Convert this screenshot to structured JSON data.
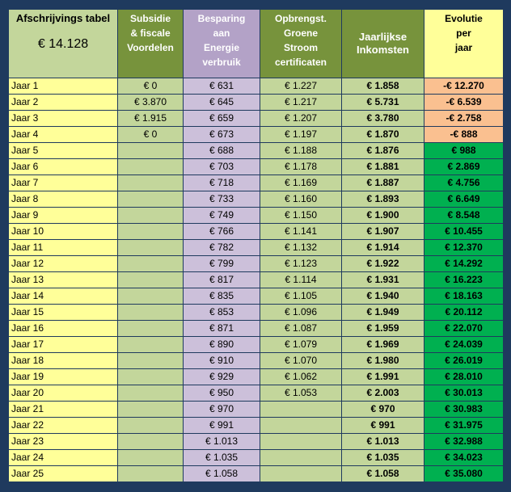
{
  "header": {
    "title": "Afschrijvings tabel",
    "investment": "€ 14.128",
    "col_subsidie": [
      "Subsidie",
      "& fiscale",
      "Voordelen"
    ],
    "col_besparing": [
      "Besparing",
      "aan",
      "Energie",
      "verbruik"
    ],
    "col_opbrengst": [
      "Opbrengst.",
      "Groene",
      "Stroom",
      "certificaten"
    ],
    "col_jaarlijkse": [
      "Jaarlijkse",
      "Inkomsten"
    ],
    "col_evolutie": [
      "Evolutie",
      "per",
      "jaar"
    ]
  },
  "colors": {
    "background": "#1f3a5e",
    "year_cell": "#ffff99",
    "green_light": "#c3d69b",
    "green_dark": "#77933c",
    "lavender": "#ccc0da",
    "lavender_header": "#b3a2c7",
    "negative": "#fac090",
    "positive": "#00b050"
  },
  "rows": [
    {
      "year": "Jaar 1",
      "subsidie": "€ 0",
      "besparing": "€ 631",
      "opbrengst": "€ 1.227",
      "inkomsten": "€ 1.858",
      "evolutie": "-€ 12.270",
      "sign": "neg"
    },
    {
      "year": "Jaar 2",
      "subsidie": "€ 3.870",
      "besparing": "€ 645",
      "opbrengst": "€ 1.217",
      "inkomsten": "€ 5.731",
      "evolutie": "-€ 6.539",
      "sign": "neg"
    },
    {
      "year": "Jaar 3",
      "subsidie": "€ 1.915",
      "besparing": "€ 659",
      "opbrengst": "€ 1.207",
      "inkomsten": "€ 3.780",
      "evolutie": "-€ 2.758",
      "sign": "neg"
    },
    {
      "year": "Jaar 4",
      "subsidie": "€ 0",
      "besparing": "€ 673",
      "opbrengst": "€ 1.197",
      "inkomsten": "€ 1.870",
      "evolutie": "-€ 888",
      "sign": "neg"
    },
    {
      "year": "Jaar 5",
      "subsidie": "",
      "besparing": "€ 688",
      "opbrengst": "€ 1.188",
      "inkomsten": "€ 1.876",
      "evolutie": "€ 988",
      "sign": "pos"
    },
    {
      "year": "Jaar 6",
      "subsidie": "",
      "besparing": "€ 703",
      "opbrengst": "€ 1.178",
      "inkomsten": "€ 1.881",
      "evolutie": "€ 2.869",
      "sign": "pos"
    },
    {
      "year": "Jaar 7",
      "subsidie": "",
      "besparing": "€ 718",
      "opbrengst": "€ 1.169",
      "inkomsten": "€ 1.887",
      "evolutie": "€ 4.756",
      "sign": "pos"
    },
    {
      "year": "Jaar 8",
      "subsidie": "",
      "besparing": "€ 733",
      "opbrengst": "€ 1.160",
      "inkomsten": "€ 1.893",
      "evolutie": "€ 6.649",
      "sign": "pos"
    },
    {
      "year": "Jaar 9",
      "subsidie": "",
      "besparing": "€ 749",
      "opbrengst": "€ 1.150",
      "inkomsten": "€ 1.900",
      "evolutie": "€ 8.548",
      "sign": "pos"
    },
    {
      "year": "Jaar 10",
      "subsidie": "",
      "besparing": "€ 766",
      "opbrengst": "€ 1.141",
      "inkomsten": "€ 1.907",
      "evolutie": "€ 10.455",
      "sign": "pos"
    },
    {
      "year": "Jaar 11",
      "subsidie": "",
      "besparing": "€ 782",
      "opbrengst": "€ 1.132",
      "inkomsten": "€ 1.914",
      "evolutie": "€ 12.370",
      "sign": "pos"
    },
    {
      "year": "Jaar 12",
      "subsidie": "",
      "besparing": "€ 799",
      "opbrengst": "€ 1.123",
      "inkomsten": "€ 1.922",
      "evolutie": "€ 14.292",
      "sign": "pos"
    },
    {
      "year": "Jaar 13",
      "subsidie": "",
      "besparing": "€ 817",
      "opbrengst": "€ 1.114",
      "inkomsten": "€ 1.931",
      "evolutie": "€ 16.223",
      "sign": "pos"
    },
    {
      "year": "Jaar 14",
      "subsidie": "",
      "besparing": "€ 835",
      "opbrengst": "€ 1.105",
      "inkomsten": "€ 1.940",
      "evolutie": "€ 18.163",
      "sign": "pos"
    },
    {
      "year": "Jaar 15",
      "subsidie": "",
      "besparing": "€ 853",
      "opbrengst": "€ 1.096",
      "inkomsten": "€ 1.949",
      "evolutie": "€ 20.112",
      "sign": "pos"
    },
    {
      "year": "Jaar 16",
      "subsidie": "",
      "besparing": "€ 871",
      "opbrengst": "€ 1.087",
      "inkomsten": "€ 1.959",
      "evolutie": "€ 22.070",
      "sign": "pos"
    },
    {
      "year": "Jaar 17",
      "subsidie": "",
      "besparing": "€ 890",
      "opbrengst": "€ 1.079",
      "inkomsten": "€ 1.969",
      "evolutie": "€ 24.039",
      "sign": "pos"
    },
    {
      "year": "Jaar 18",
      "subsidie": "",
      "besparing": "€ 910",
      "opbrengst": "€ 1.070",
      "inkomsten": "€ 1.980",
      "evolutie": "€ 26.019",
      "sign": "pos"
    },
    {
      "year": "Jaar 19",
      "subsidie": "",
      "besparing": "€ 929",
      "opbrengst": "€ 1.062",
      "inkomsten": "€ 1.991",
      "evolutie": "€ 28.010",
      "sign": "pos"
    },
    {
      "year": "Jaar 20",
      "subsidie": "",
      "besparing": "€ 950",
      "opbrengst": "€ 1.053",
      "inkomsten": "€ 2.003",
      "evolutie": "€ 30.013",
      "sign": "pos"
    },
    {
      "year": "Jaar 21",
      "subsidie": "",
      "besparing": "€ 970",
      "opbrengst": "",
      "inkomsten": "€ 970",
      "evolutie": "€ 30.983",
      "sign": "pos"
    },
    {
      "year": "Jaar 22",
      "subsidie": "",
      "besparing": "€ 991",
      "opbrengst": "",
      "inkomsten": "€ 991",
      "evolutie": "€ 31.975",
      "sign": "pos"
    },
    {
      "year": "Jaar 23",
      "subsidie": "",
      "besparing": "€ 1.013",
      "opbrengst": "",
      "inkomsten": "€ 1.013",
      "evolutie": "€ 32.988",
      "sign": "pos"
    },
    {
      "year": "Jaar 24",
      "subsidie": "",
      "besparing": "€ 1.035",
      "opbrengst": "",
      "inkomsten": "€ 1.035",
      "evolutie": "€ 34.023",
      "sign": "pos"
    },
    {
      "year": "Jaar 25",
      "subsidie": "",
      "besparing": "€ 1.058",
      "opbrengst": "",
      "inkomsten": "€ 1.058",
      "evolutie": "€ 35.080",
      "sign": "pos"
    }
  ]
}
